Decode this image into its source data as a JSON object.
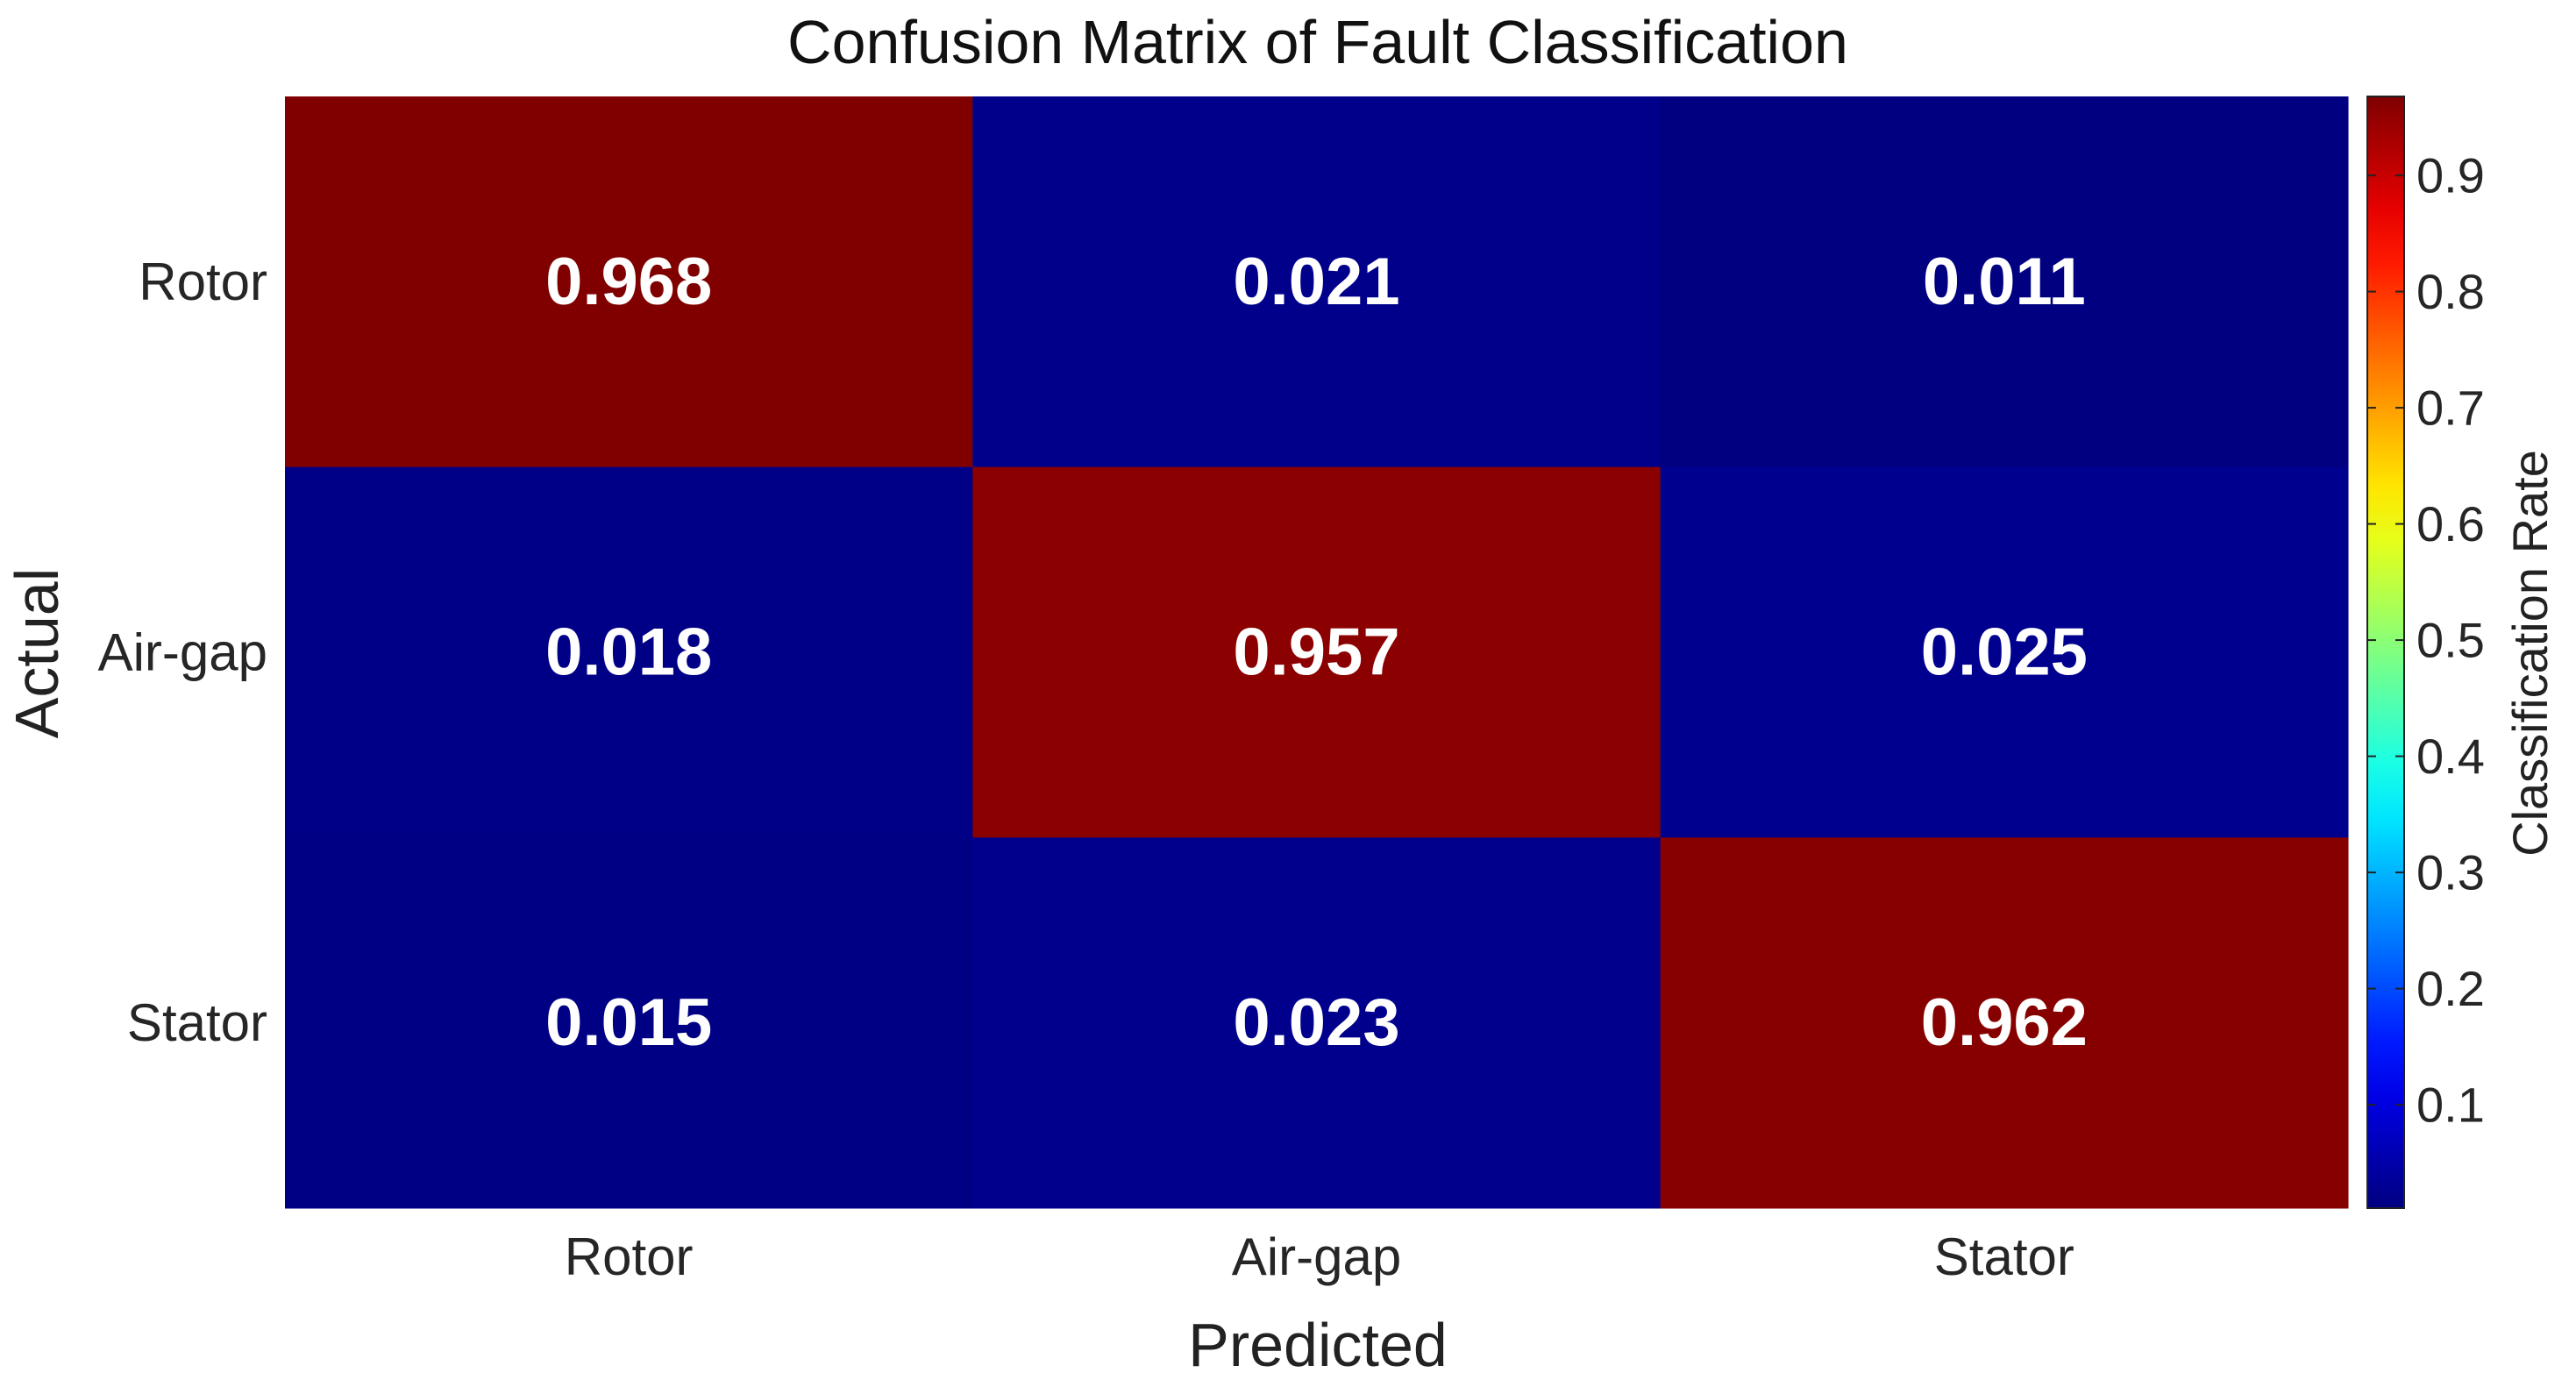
{
  "chart_data": {
    "type": "heatmap",
    "title": "Confusion Matrix of Fault Classification",
    "xlabel": "Predicted",
    "ylabel": "Actual",
    "x_categories": [
      "Rotor",
      "Air-gap",
      "Stator"
    ],
    "y_categories": [
      "Rotor",
      "Air-gap",
      "Stator"
    ],
    "values": [
      [
        0.968,
        0.021,
        0.011
      ],
      [
        0.018,
        0.957,
        0.025
      ],
      [
        0.015,
        0.023,
        0.962
      ]
    ],
    "value_labels": [
      [
        "0.968",
        "0.021",
        "0.011"
      ],
      [
        "0.018",
        "0.957",
        "0.025"
      ],
      [
        "0.015",
        "0.023",
        "0.962"
      ]
    ],
    "colormap": "jet",
    "clim": [
      0.011,
      0.968
    ],
    "colorbar": {
      "label": "Classification Rate",
      "ticks": [
        0.1,
        0.2,
        0.3,
        0.4,
        0.5,
        0.6,
        0.7,
        0.8,
        0.9
      ],
      "tick_labels": [
        "0.1",
        "0.2",
        "0.3",
        "0.4",
        "0.5",
        "0.6",
        "0.7",
        "0.8",
        "0.9"
      ],
      "placement": "right"
    },
    "grid": false,
    "cell_label_color": "#ffffff"
  }
}
